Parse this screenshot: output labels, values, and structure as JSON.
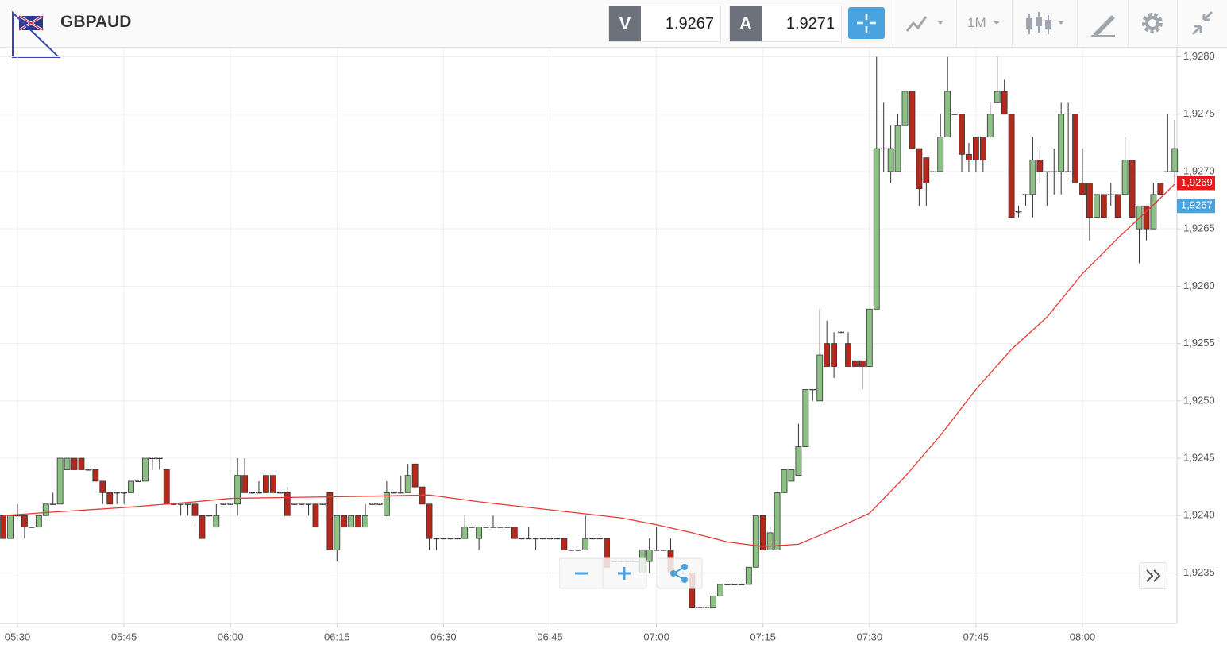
{
  "toolbar": {
    "symbol": "GBPAUD",
    "bid_letter": "V",
    "bid": "1.9267",
    "ask_letter": "A",
    "ask": "1.9271",
    "timeframe": "1M"
  },
  "chart_data": {
    "type": "candlestick",
    "up_color": "#8cc084",
    "down_color": "#b5291c",
    "ylim": [
      1.92306,
      1.92808
    ],
    "yticks": [
      {
        "value": 1.9235,
        "label": "1,9235"
      },
      {
        "value": 1.924,
        "label": "1,9240"
      },
      {
        "value": 1.9245,
        "label": "1,9245"
      },
      {
        "value": 1.925,
        "label": "1,9250"
      },
      {
        "value": 1.9255,
        "label": "1,9255"
      },
      {
        "value": 1.926,
        "label": "1,9260"
      },
      {
        "value": 1.9265,
        "label": "1,9265"
      },
      {
        "value": 1.927,
        "label": "1,9270"
      },
      {
        "value": 1.9275,
        "label": "1,9275"
      },
      {
        "value": 1.928,
        "label": "1,9280"
      }
    ],
    "xticks": [
      "05:30",
      "05:45",
      "06:00",
      "06:15",
      "06:30",
      "06:45",
      "07:00",
      "07:15",
      "07:30",
      "07:45",
      "08:00"
    ],
    "grid": true,
    "price_tags": [
      {
        "value": 1.9269,
        "label": "1,9269",
        "color": "#e8191b"
      },
      {
        "value": 1.9267,
        "label": "1,9267",
        "color": "#4aa3df"
      }
    ],
    "moving_average": {
      "color": "#e53935",
      "x": [
        "05:28",
        "05:35",
        "05:45",
        "05:55",
        "06:00",
        "06:10",
        "06:20",
        "06:28",
        "06:35",
        "06:45",
        "06:55",
        "07:00",
        "07:05",
        "07:10",
        "07:15",
        "07:20",
        "07:25",
        "07:30",
        "07:35",
        "07:40",
        "07:45",
        "07:50",
        "07:55",
        "08:00",
        "08:05",
        "08:10",
        "08:13"
      ],
      "values": [
        1.924,
        1.92403,
        1.92407,
        1.92412,
        1.92415,
        1.92416,
        1.92417,
        1.92418,
        1.92412,
        1.92405,
        1.92398,
        1.92392,
        1.92385,
        1.92377,
        1.92373,
        1.92375,
        1.92388,
        1.92402,
        1.92434,
        1.9247,
        1.9251,
        1.92545,
        1.92573,
        1.92611,
        1.92642,
        1.92671,
        1.92689
      ]
    },
    "candles": [
      [
        "05:28",
        1.924,
        1.924,
        1.9238,
        1.9238
      ],
      [
        "05:29",
        1.9238,
        1.924,
        1.9238,
        1.924
      ],
      [
        "05:30",
        1.924,
        1.9241,
        1.924,
        1.924
      ],
      [
        "05:31",
        1.924,
        1.924,
        1.9238,
        1.9239
      ],
      [
        "05:32",
        1.9239,
        1.9239,
        1.9239,
        1.9239
      ],
      [
        "05:33",
        1.9239,
        1.924,
        1.9239,
        1.924
      ],
      [
        "05:34",
        1.924,
        1.9241,
        1.924,
        1.9241
      ],
      [
        "05:35",
        1.9241,
        1.9242,
        1.9241,
        1.9241
      ],
      [
        "05:36",
        1.9241,
        1.9245,
        1.9241,
        1.9245
      ],
      [
        "05:37",
        1.9244,
        1.9245,
        1.9244,
        1.9245
      ],
      [
        "05:38",
        1.9245,
        1.9245,
        1.9244,
        1.9244
      ],
      [
        "05:39",
        1.9245,
        1.9245,
        1.9244,
        1.9244
      ],
      [
        "05:40",
        1.9244,
        1.9244,
        1.9244,
        1.9244
      ],
      [
        "05:41",
        1.9244,
        1.9244,
        1.9243,
        1.9243
      ],
      [
        "05:42",
        1.9243,
        1.9243,
        1.9241,
        1.9242
      ],
      [
        "05:43",
        1.9242,
        1.9242,
        1.9241,
        1.9241
      ],
      [
        "05:44",
        1.9242,
        1.9242,
        1.9241,
        1.9242
      ],
      [
        "05:45",
        1.9242,
        1.9242,
        1.9241,
        1.9242
      ],
      [
        "05:46",
        1.9242,
        1.9243,
        1.9242,
        1.9243
      ],
      [
        "05:47",
        1.9243,
        1.9243,
        1.9243,
        1.9243
      ],
      [
        "05:48",
        1.9243,
        1.9245,
        1.9243,
        1.9245
      ],
      [
        "05:49",
        1.9245,
        1.9245,
        1.9244,
        1.9245
      ],
      [
        "05:50",
        1.9245,
        1.9245,
        1.9244,
        1.9245
      ],
      [
        "05:51",
        1.9244,
        1.9244,
        1.9241,
        1.9241
      ],
      [
        "05:52",
        1.9241,
        1.9241,
        1.9241,
        1.9241
      ],
      [
        "05:53",
        1.9241,
        1.9241,
        1.924,
        1.9241
      ],
      [
        "05:54",
        1.9241,
        1.9241,
        1.924,
        1.9241
      ],
      [
        "05:55",
        1.9241,
        1.9241,
        1.9239,
        1.924
      ],
      [
        "05:56",
        1.924,
        1.924,
        1.9238,
        1.9238
      ],
      [
        "05:57",
        1.924,
        1.924,
        1.924,
        1.924
      ],
      [
        "05:58",
        1.9239,
        1.9241,
        1.9239,
        1.924
      ],
      [
        "05:59",
        1.9241,
        1.9241,
        1.9241,
        1.9241
      ],
      [
        "06:00",
        1.9241,
        1.9241,
        1.9241,
        1.9241
      ],
      [
        "06:01",
        1.9241,
        1.9245,
        1.924,
        1.92435
      ],
      [
        "06:02",
        1.92435,
        1.9245,
        1.9242,
        1.9242
      ],
      [
        "06:03",
        1.9242,
        1.9242,
        1.9242,
        1.9242
      ],
      [
        "06:04",
        1.9242,
        1.9243,
        1.9242,
        1.9242
      ],
      [
        "06:05",
        1.92435,
        1.92435,
        1.9242,
        1.9242
      ],
      [
        "06:06",
        1.92435,
        1.92435,
        1.9242,
        1.9242
      ],
      [
        "06:07",
        1.9242,
        1.9242,
        1.9242,
        1.9242
      ],
      [
        "06:08",
        1.9242,
        1.92425,
        1.924,
        1.924
      ],
      [
        "06:09",
        1.9241,
        1.9241,
        1.9241,
        1.9241
      ],
      [
        "06:10",
        1.9241,
        1.9241,
        1.9241,
        1.9241
      ],
      [
        "06:11",
        1.9241,
        1.9241,
        1.924,
        1.9241
      ],
      [
        "06:12",
        1.9241,
        1.9241,
        1.9239,
        1.9239
      ],
      [
        "06:13",
        1.9241,
        1.9241,
        1.9241,
        1.9241
      ],
      [
        "06:14",
        1.9242,
        1.9242,
        1.9237,
        1.9237
      ],
      [
        "06:15",
        1.9237,
        1.924,
        1.9236,
        1.924
      ],
      [
        "06:16",
        1.924,
        1.924,
        1.9239,
        1.9239
      ],
      [
        "06:17",
        1.9239,
        1.924,
        1.9239,
        1.924
      ],
      [
        "06:18",
        1.924,
        1.924,
        1.9239,
        1.9239
      ],
      [
        "06:19",
        1.9239,
        1.9241,
        1.9239,
        1.924
      ],
      [
        "06:20",
        1.9241,
        1.9241,
        1.9241,
        1.9241
      ],
      [
        "06:21",
        1.9241,
        1.9241,
        1.9241,
        1.9241
      ],
      [
        "06:22",
        1.924,
        1.9243,
        1.924,
        1.9242
      ],
      [
        "06:23",
        1.9242,
        1.9242,
        1.9242,
        1.9242
      ],
      [
        "06:24",
        1.9242,
        1.92435,
        1.9242,
        1.9242
      ],
      [
        "06:25",
        1.9242,
        1.92445,
        1.9242,
        1.92435
      ],
      [
        "06:26",
        1.92445,
        1.92445,
        1.92425,
        1.92425
      ],
      [
        "06:27",
        1.92425,
        1.92425,
        1.9241,
        1.9241
      ],
      [
        "06:28",
        1.9241,
        1.9241,
        1.9237,
        1.9238
      ],
      [
        "06:29",
        1.9238,
        1.9238,
        1.9237,
        1.9238
      ],
      [
        "06:30",
        1.9238,
        1.9238,
        1.9238,
        1.9238
      ],
      [
        "06:31",
        1.9238,
        1.9238,
        1.9238,
        1.9238
      ],
      [
        "06:32",
        1.9238,
        1.9238,
        1.9238,
        1.9238
      ],
      [
        "06:33",
        1.9238,
        1.924,
        1.9238,
        1.9239
      ],
      [
        "06:34",
        1.9239,
        1.9239,
        1.9239,
        1.9239
      ],
      [
        "06:35",
        1.9238,
        1.9239,
        1.9237,
        1.9239
      ],
      [
        "06:36",
        1.9239,
        1.9239,
        1.9239,
        1.9239
      ],
      [
        "06:37",
        1.9239,
        1.924,
        1.9239,
        1.9239
      ],
      [
        "06:38",
        1.9239,
        1.9239,
        1.9239,
        1.9239
      ],
      [
        "06:39",
        1.9239,
        1.9239,
        1.9239,
        1.9239
      ],
      [
        "06:40",
        1.9239,
        1.9239,
        1.9238,
        1.9238
      ],
      [
        "06:41",
        1.9238,
        1.9238,
        1.9238,
        1.9238
      ],
      [
        "06:42",
        1.9238,
        1.9239,
        1.9238,
        1.9238
      ],
      [
        "06:43",
        1.9238,
        1.9238,
        1.9237,
        1.9238
      ],
      [
        "06:44",
        1.9238,
        1.9238,
        1.9238,
        1.9238
      ],
      [
        "06:45",
        1.9238,
        1.9238,
        1.9238,
        1.9238
      ],
      [
        "06:46",
        1.9238,
        1.9238,
        1.9238,
        1.9238
      ],
      [
        "06:47",
        1.9238,
        1.9238,
        1.9237,
        1.9237
      ],
      [
        "06:48",
        1.9237,
        1.9237,
        1.9237,
        1.9237
      ],
      [
        "06:49",
        1.9237,
        1.9237,
        1.9237,
        1.9237
      ],
      [
        "06:50",
        1.9237,
        1.924,
        1.9237,
        1.9238
      ],
      [
        "06:51",
        1.9238,
        1.9238,
        1.9238,
        1.9238
      ],
      [
        "06:52",
        1.9238,
        1.9238,
        1.9238,
        1.9238
      ],
      [
        "06:53",
        1.9238,
        1.9238,
        1.92355,
        1.92355
      ],
      [
        "06:54",
        1.9236,
        1.9236,
        1.9236,
        1.9236
      ],
      [
        "06:55",
        1.9236,
        1.9236,
        1.9236,
        1.9236
      ],
      [
        "06:56",
        1.9236,
        1.9236,
        1.9236,
        1.9236
      ],
      [
        "06:57",
        1.9236,
        1.9236,
        1.9236,
        1.9236
      ],
      [
        "06:58",
        1.9235,
        1.9237,
        1.9235,
        1.9237
      ],
      [
        "06:59",
        1.9236,
        1.9238,
        1.9235,
        1.9237
      ],
      [
        "07:00",
        1.9237,
        1.9239,
        1.9237,
        1.9237
      ],
      [
        "07:01",
        1.9237,
        1.9237,
        1.9237,
        1.9237
      ],
      [
        "07:02",
        1.9237,
        1.9238,
        1.9235,
        1.9235
      ],
      [
        "07:03",
        1.9235,
        1.9235,
        1.9235,
        1.9235
      ],
      [
        "07:04",
        1.9235,
        1.9235,
        1.9235,
        1.9235
      ],
      [
        "07:05",
        1.9235,
        1.9235,
        1.9232,
        1.9232
      ],
      [
        "07:06",
        1.9232,
        1.9232,
        1.9232,
        1.9232
      ],
      [
        "07:07",
        1.9232,
        1.9232,
        1.9232,
        1.9232
      ],
      [
        "07:08",
        1.9232,
        1.9233,
        1.9232,
        1.9233
      ],
      [
        "07:09",
        1.9233,
        1.9234,
        1.9233,
        1.9234
      ],
      [
        "07:10",
        1.9234,
        1.9234,
        1.9234,
        1.9234
      ],
      [
        "07:11",
        1.9234,
        1.9234,
        1.9234,
        1.9234
      ],
      [
        "07:12",
        1.9234,
        1.9234,
        1.9234,
        1.9234
      ],
      [
        "07:13",
        1.9234,
        1.92355,
        1.9234,
        1.92355
      ],
      [
        "07:14",
        1.92355,
        1.924,
        1.92355,
        1.924
      ],
      [
        "07:15",
        1.924,
        1.924,
        1.9237,
        1.9237
      ],
      [
        "07:16",
        1.9237,
        1.9239,
        1.9237,
        1.92385
      ],
      [
        "07:17",
        1.9237,
        1.9242,
        1.9237,
        1.9242
      ],
      [
        "07:18",
        1.9242,
        1.9244,
        1.9242,
        1.9244
      ],
      [
        "07:19",
        1.9243,
        1.9244,
        1.9243,
        1.9244
      ],
      [
        "07:20",
        1.92435,
        1.9248,
        1.92435,
        1.9246
      ],
      [
        "07:21",
        1.9246,
        1.9251,
        1.9246,
        1.9251
      ],
      [
        "07:22",
        1.9251,
        1.9251,
        1.925,
        1.9251
      ],
      [
        "07:23",
        1.925,
        1.9258,
        1.925,
        1.9254
      ],
      [
        "07:24",
        1.9255,
        1.9257,
        1.9253,
        1.9253
      ],
      [
        "07:25",
        1.9255,
        1.9256,
        1.9252,
        1.9253
      ],
      [
        "07:26",
        1.9256,
        1.9256,
        1.9256,
        1.9256
      ],
      [
        "07:27",
        1.9255,
        1.9256,
        1.9253,
        1.9253
      ],
      [
        "07:28",
        1.92535,
        1.92535,
        1.9253,
        1.9253
      ],
      [
        "07:29",
        1.92535,
        1.92535,
        1.9251,
        1.9253
      ],
      [
        "07:30",
        1.9253,
        1.9258,
        1.9253,
        1.9258
      ],
      [
        "07:31",
        1.9258,
        1.928,
        1.9258,
        1.9272
      ],
      [
        "07:32",
        1.9272,
        1.9276,
        1.927,
        1.9272
      ],
      [
        "07:33",
        1.927,
        1.9274,
        1.9269,
        1.9272
      ],
      [
        "07:34",
        1.927,
        1.9275,
        1.927,
        1.9274
      ],
      [
        "07:35",
        1.9274,
        1.9277,
        1.927,
        1.9277
      ],
      [
        "07:36",
        1.9277,
        1.9277,
        1.9272,
        1.9272
      ],
      [
        "07:37",
        1.9272,
        1.9272,
        1.9267,
        1.92685
      ],
      [
        "07:38",
        1.92712,
        1.92712,
        1.9267,
        1.9269
      ],
      [
        "07:39",
        1.927,
        1.927,
        1.927,
        1.927
      ],
      [
        "07:40",
        1.927,
        1.9275,
        1.927,
        1.9273
      ],
      [
        "07:41",
        1.9273,
        1.928,
        1.9273,
        1.9277
      ],
      [
        "07:42",
        1.9275,
        1.9275,
        1.9275,
        1.9275
      ],
      [
        "07:43",
        1.9275,
        1.9275,
        1.927,
        1.92715
      ],
      [
        "07:44",
        1.92715,
        1.92725,
        1.927,
        1.9271
      ],
      [
        "07:45",
        1.9273,
        1.9273,
        1.927,
        1.9271
      ],
      [
        "07:46",
        1.9273,
        1.9273,
        1.927,
        1.9271
      ],
      [
        "07:47",
        1.9273,
        1.9276,
        1.9273,
        1.9275
      ],
      [
        "07:48",
        1.9276,
        1.928,
        1.9276,
        1.9277
      ],
      [
        "07:49",
        1.9277,
        1.9278,
        1.9275,
        1.9275
      ],
      [
        "07:50",
        1.9275,
        1.9275,
        1.9266,
        1.9266
      ],
      [
        "07:51",
        1.92665,
        1.9267,
        1.9266,
        1.92665
      ],
      [
        "07:52",
        1.9268,
        1.9268,
        1.9267,
        1.9268
      ],
      [
        "07:53",
        1.9268,
        1.9273,
        1.9266,
        1.9271
      ],
      [
        "07:54",
        1.9271,
        1.9272,
        1.9269,
        1.927
      ],
      [
        "07:55",
        1.927,
        1.927,
        1.9267,
        1.927
      ],
      [
        "07:56",
        1.927,
        1.9272,
        1.9268,
        1.927
      ],
      [
        "07:57",
        1.927,
        1.9276,
        1.9268,
        1.9275
      ],
      [
        "07:58",
        1.927,
        1.9276,
        1.927,
        1.927
      ],
      [
        "07:59",
        1.9275,
        1.9275,
        1.9269,
        1.9269
      ],
      [
        "08:00",
        1.9269,
        1.9272,
        1.9268,
        1.9268
      ],
      [
        "08:01",
        1.9269,
        1.9269,
        1.9264,
        1.9266
      ],
      [
        "08:02",
        1.9266,
        1.9268,
        1.9266,
        1.9268
      ],
      [
        "08:03",
        1.9268,
        1.9268,
        1.9266,
        1.9266
      ],
      [
        "08:04",
        1.9268,
        1.9269,
        1.9267,
        1.9268
      ],
      [
        "08:05",
        1.9268,
        1.9268,
        1.9266,
        1.9266
      ],
      [
        "08:06",
        1.9268,
        1.9273,
        1.9268,
        1.9271
      ],
      [
        "08:07",
        1.9271,
        1.9271,
        1.9266,
        1.9266
      ],
      [
        "08:08",
        1.9265,
        1.9267,
        1.9262,
        1.9267
      ],
      [
        "08:09",
        1.9267,
        1.9267,
        1.9264,
        1.9265
      ],
      [
        "08:10",
        1.9265,
        1.9269,
        1.9265,
        1.9268
      ],
      [
        "08:11",
        1.9269,
        1.9269,
        1.9268,
        1.9268
      ],
      [
        "08:12",
        1.927,
        1.9275,
        1.927,
        1.927
      ],
      [
        "08:13",
        1.927,
        1.92745,
        1.9269,
        1.9272
      ]
    ]
  }
}
